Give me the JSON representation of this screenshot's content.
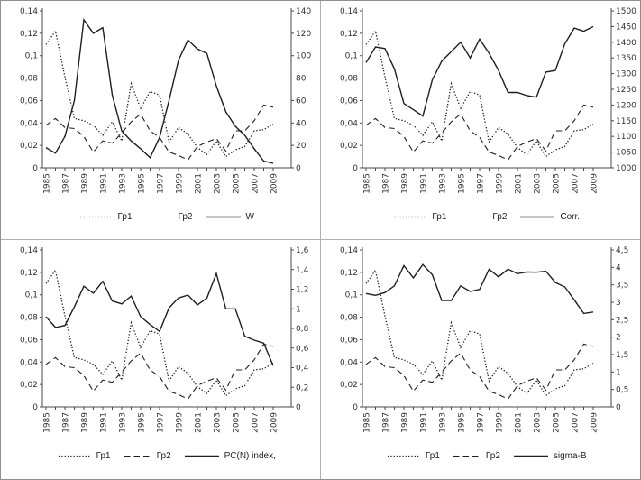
{
  "page": {
    "background": "#ffffff",
    "frame_border": "#8f8f8f",
    "line_color": "#1f1f1f",
    "text_color": "#333333"
  },
  "chart_data": [
    {
      "type": "line",
      "position": "top-left",
      "grid": false,
      "legend_position": "bottom",
      "x_years": [
        1985,
        1986,
        1987,
        1988,
        1989,
        1990,
        1991,
        1992,
        1993,
        1994,
        1995,
        1996,
        1997,
        1998,
        1999,
        2000,
        2001,
        2002,
        2003,
        2004,
        2005,
        2006,
        2007,
        2008,
        2009
      ],
      "x_tick_label_step": 2,
      "left_axis": {
        "min": 0,
        "max": 0.14,
        "tick_labels": [
          "0,14",
          "0,12",
          "0,1",
          "0,08",
          "0,06",
          "0,04",
          "0,02",
          "0"
        ]
      },
      "right_axis": {
        "min": 0,
        "max": 140,
        "tick_labels": [
          "140",
          "120",
          "100",
          "80",
          "60",
          "40",
          "20",
          "0"
        ]
      },
      "series": [
        {
          "name": "Гр1",
          "style": "dotted",
          "axis": "left",
          "values": [
            0.11,
            0.122,
            0.081,
            0.044,
            0.042,
            0.038,
            0.029,
            0.041,
            0.024,
            0.075,
            0.053,
            0.068,
            0.065,
            0.023,
            0.036,
            0.03,
            0.018,
            0.012,
            0.024,
            0.01,
            0.016,
            0.019,
            0.033,
            0.034,
            0.039
          ]
        },
        {
          "name": "Гр2",
          "style": "dashed",
          "axis": "left",
          "values": [
            0.038,
            0.044,
            0.036,
            0.035,
            0.028,
            0.014,
            0.024,
            0.022,
            0.031,
            0.041,
            0.048,
            0.033,
            0.027,
            0.014,
            0.011,
            0.007,
            0.019,
            0.023,
            0.026,
            0.015,
            0.033,
            0.033,
            0.042,
            0.056,
            0.054
          ]
        },
        {
          "name": "W",
          "style": "solid",
          "axis": "right",
          "values": [
            18,
            13,
            28,
            60,
            132,
            120,
            125,
            65,
            33,
            24,
            17,
            9,
            27,
            60,
            96,
            114,
            106,
            102,
            73,
            50,
            37,
            29,
            17,
            6,
            4
          ]
        }
      ]
    },
    {
      "type": "line",
      "position": "top-right",
      "grid": false,
      "legend_position": "bottom",
      "x_years": [
        1985,
        1986,
        1987,
        1988,
        1989,
        1990,
        1991,
        1992,
        1993,
        1994,
        1995,
        1996,
        1997,
        1998,
        1999,
        2000,
        2001,
        2002,
        2003,
        2004,
        2005,
        2006,
        2007,
        2008,
        2009
      ],
      "x_tick_label_step": 2,
      "left_axis": {
        "min": 0,
        "max": 0.14,
        "tick_labels": [
          "0,14",
          "0,12",
          "0,1",
          "0,08",
          "0,06",
          "0,04",
          "0,02",
          "0"
        ]
      },
      "right_axis": {
        "min": 1000,
        "max": 1500,
        "tick_labels": [
          "1500",
          "1450",
          "1400",
          "1350",
          "1300",
          "1250",
          "1200",
          "1150",
          "1100",
          "1050",
          "1000"
        ]
      },
      "series": [
        {
          "name": "Гр1",
          "style": "dotted",
          "axis": "left",
          "values": [
            0.11,
            0.122,
            0.081,
            0.044,
            0.042,
            0.038,
            0.029,
            0.041,
            0.024,
            0.075,
            0.053,
            0.068,
            0.065,
            0.023,
            0.036,
            0.03,
            0.018,
            0.012,
            0.024,
            0.01,
            0.016,
            0.019,
            0.033,
            0.034,
            0.039
          ]
        },
        {
          "name": "Гр2",
          "style": "dashed",
          "axis": "left",
          "values": [
            0.038,
            0.044,
            0.036,
            0.035,
            0.028,
            0.014,
            0.024,
            0.022,
            0.031,
            0.041,
            0.048,
            0.033,
            0.027,
            0.014,
            0.011,
            0.007,
            0.019,
            0.023,
            0.026,
            0.015,
            0.033,
            0.033,
            0.042,
            0.056,
            0.054
          ]
        },
        {
          "name": "Corr.",
          "style": "solid",
          "axis": "right",
          "values": [
            1335,
            1385,
            1380,
            1315,
            1205,
            1185,
            1165,
            1280,
            1340,
            1370,
            1400,
            1350,
            1410,
            1365,
            1310,
            1240,
            1240,
            1230,
            1225,
            1305,
            1310,
            1395,
            1445,
            1435,
            1450
          ]
        }
      ]
    },
    {
      "type": "line",
      "position": "bottom-left",
      "grid": false,
      "legend_position": "bottom",
      "x_years": [
        1985,
        1986,
        1987,
        1988,
        1989,
        1990,
        1991,
        1992,
        1993,
        1994,
        1995,
        1996,
        1997,
        1998,
        1999,
        2000,
        2001,
        2002,
        2003,
        2004,
        2005,
        2006,
        2007,
        2008,
        2009
      ],
      "x_tick_label_step": 2,
      "left_axis": {
        "min": 0,
        "max": 0.14,
        "tick_labels": [
          "0,14",
          "0,12",
          "0,1",
          "0,08",
          "0,06",
          "0,04",
          "0,02",
          "0"
        ]
      },
      "right_axis": {
        "min": 0,
        "max": 1.6,
        "tick_labels": [
          "1,6",
          "1,4",
          "1,2",
          "1",
          "0,8",
          "0,6",
          "0,4",
          "0,2",
          "0"
        ]
      },
      "series": [
        {
          "name": "Гр1",
          "style": "dotted",
          "axis": "left",
          "values": [
            0.11,
            0.122,
            0.081,
            0.044,
            0.042,
            0.038,
            0.029,
            0.041,
            0.024,
            0.075,
            0.053,
            0.068,
            0.065,
            0.023,
            0.036,
            0.03,
            0.018,
            0.012,
            0.024,
            0.01,
            0.016,
            0.019,
            0.033,
            0.034,
            0.039
          ]
        },
        {
          "name": "Гр2",
          "style": "dashed",
          "axis": "left",
          "values": [
            0.038,
            0.044,
            0.036,
            0.035,
            0.028,
            0.014,
            0.024,
            0.022,
            0.031,
            0.041,
            0.048,
            0.033,
            0.027,
            0.014,
            0.011,
            0.007,
            0.019,
            0.023,
            0.026,
            0.015,
            0.033,
            0.033,
            0.042,
            0.056,
            0.054
          ]
        },
        {
          "name": "PC(N) index,",
          "style": "solid",
          "axis": "right",
          "values": [
            0.92,
            0.81,
            0.83,
            1.02,
            1.23,
            1.16,
            1.28,
            1.08,
            1.05,
            1.13,
            0.92,
            0.84,
            0.77,
            1.01,
            1.11,
            1.14,
            1.04,
            1.11,
            1.36,
            1.0,
            1.0,
            0.72,
            0.68,
            0.65,
            0.42
          ]
        }
      ]
    },
    {
      "type": "line",
      "position": "bottom-right",
      "grid": false,
      "legend_position": "bottom",
      "x_years": [
        1985,
        1986,
        1987,
        1988,
        1989,
        1990,
        1991,
        1992,
        1993,
        1994,
        1995,
        1996,
        1997,
        1998,
        1999,
        2000,
        2001,
        2002,
        2003,
        2004,
        2005,
        2006,
        2007,
        2008,
        2009
      ],
      "x_tick_label_step": 2,
      "left_axis": {
        "min": 0,
        "max": 0.14,
        "tick_labels": [
          "0,14",
          "0,12",
          "0,1",
          "0,08",
          "0,06",
          "0,04",
          "0,02",
          "0"
        ]
      },
      "right_axis": {
        "min": 0,
        "max": 4.5,
        "tick_labels": [
          "4,5",
          "4",
          "3,5",
          "3",
          "2,5",
          "2",
          "1,5",
          "1",
          "0,5",
          "0"
        ]
      },
      "series": [
        {
          "name": "Гр1",
          "style": "dotted",
          "axis": "left",
          "values": [
            0.11,
            0.122,
            0.081,
            0.044,
            0.042,
            0.038,
            0.029,
            0.041,
            0.024,
            0.075,
            0.053,
            0.068,
            0.065,
            0.023,
            0.036,
            0.03,
            0.018,
            0.012,
            0.024,
            0.01,
            0.016,
            0.019,
            0.033,
            0.034,
            0.039
          ]
        },
        {
          "name": "Гр2",
          "style": "dashed",
          "axis": "left",
          "values": [
            0.038,
            0.044,
            0.036,
            0.035,
            0.028,
            0.014,
            0.024,
            0.022,
            0.031,
            0.041,
            0.048,
            0.033,
            0.027,
            0.014,
            0.011,
            0.007,
            0.019,
            0.023,
            0.026,
            0.015,
            0.033,
            0.033,
            0.042,
            0.056,
            0.054
          ]
        },
        {
          "name": "sigma-B",
          "style": "solid",
          "axis": "right",
          "values": [
            3.25,
            3.2,
            3.28,
            3.47,
            4.05,
            3.7,
            4.08,
            3.79,
            3.05,
            3.05,
            3.47,
            3.31,
            3.37,
            3.95,
            3.73,
            3.95,
            3.82,
            3.87,
            3.86,
            3.89,
            3.57,
            3.44,
            3.07,
            2.68,
            2.72
          ]
        }
      ]
    }
  ]
}
